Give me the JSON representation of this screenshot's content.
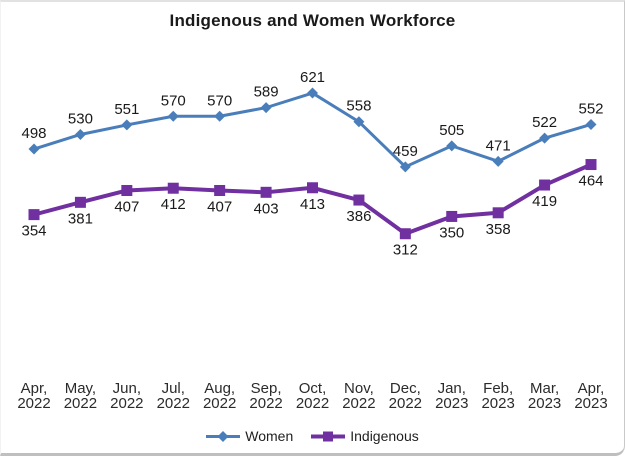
{
  "chart_data": {
    "type": "line",
    "title": "Indigenous and Women Workforce",
    "categories": [
      [
        "Apr,",
        "2022"
      ],
      [
        "May,",
        "2022"
      ],
      [
        "Jun,",
        "2022"
      ],
      [
        "Jul,",
        "2022"
      ],
      [
        "Aug,",
        "2022"
      ],
      [
        "Sep,",
        "2022"
      ],
      [
        "Oct,",
        "2022"
      ],
      [
        "Nov,",
        "2022"
      ],
      [
        "Dec,",
        "2022"
      ],
      [
        "Jan,",
        "2023"
      ],
      [
        "Feb,",
        "2023"
      ],
      [
        "Mar,",
        "2023"
      ],
      [
        "Apr,",
        "2023"
      ]
    ],
    "series": [
      {
        "name": "Women",
        "color": "#4a7ebb",
        "marker": "diamond",
        "line_width": 3,
        "label_position": "above",
        "values": [
          498,
          530,
          551,
          570,
          570,
          589,
          621,
          558,
          459,
          505,
          471,
          522,
          552
        ]
      },
      {
        "name": "Indigenous",
        "color": "#7030a0",
        "marker": "square",
        "line_width": 4,
        "label_position": "below",
        "values": [
          354,
          381,
          407,
          412,
          407,
          403,
          413,
          386,
          312,
          350,
          358,
          419,
          464
        ]
      }
    ],
    "legend_position": "bottom",
    "grid": false,
    "x_axis_line": false,
    "y_axis_visible": false,
    "ylim": [
      280,
      660
    ],
    "label_color": "#1a1a1a",
    "axis_label_color": "#2b2b2b"
  }
}
